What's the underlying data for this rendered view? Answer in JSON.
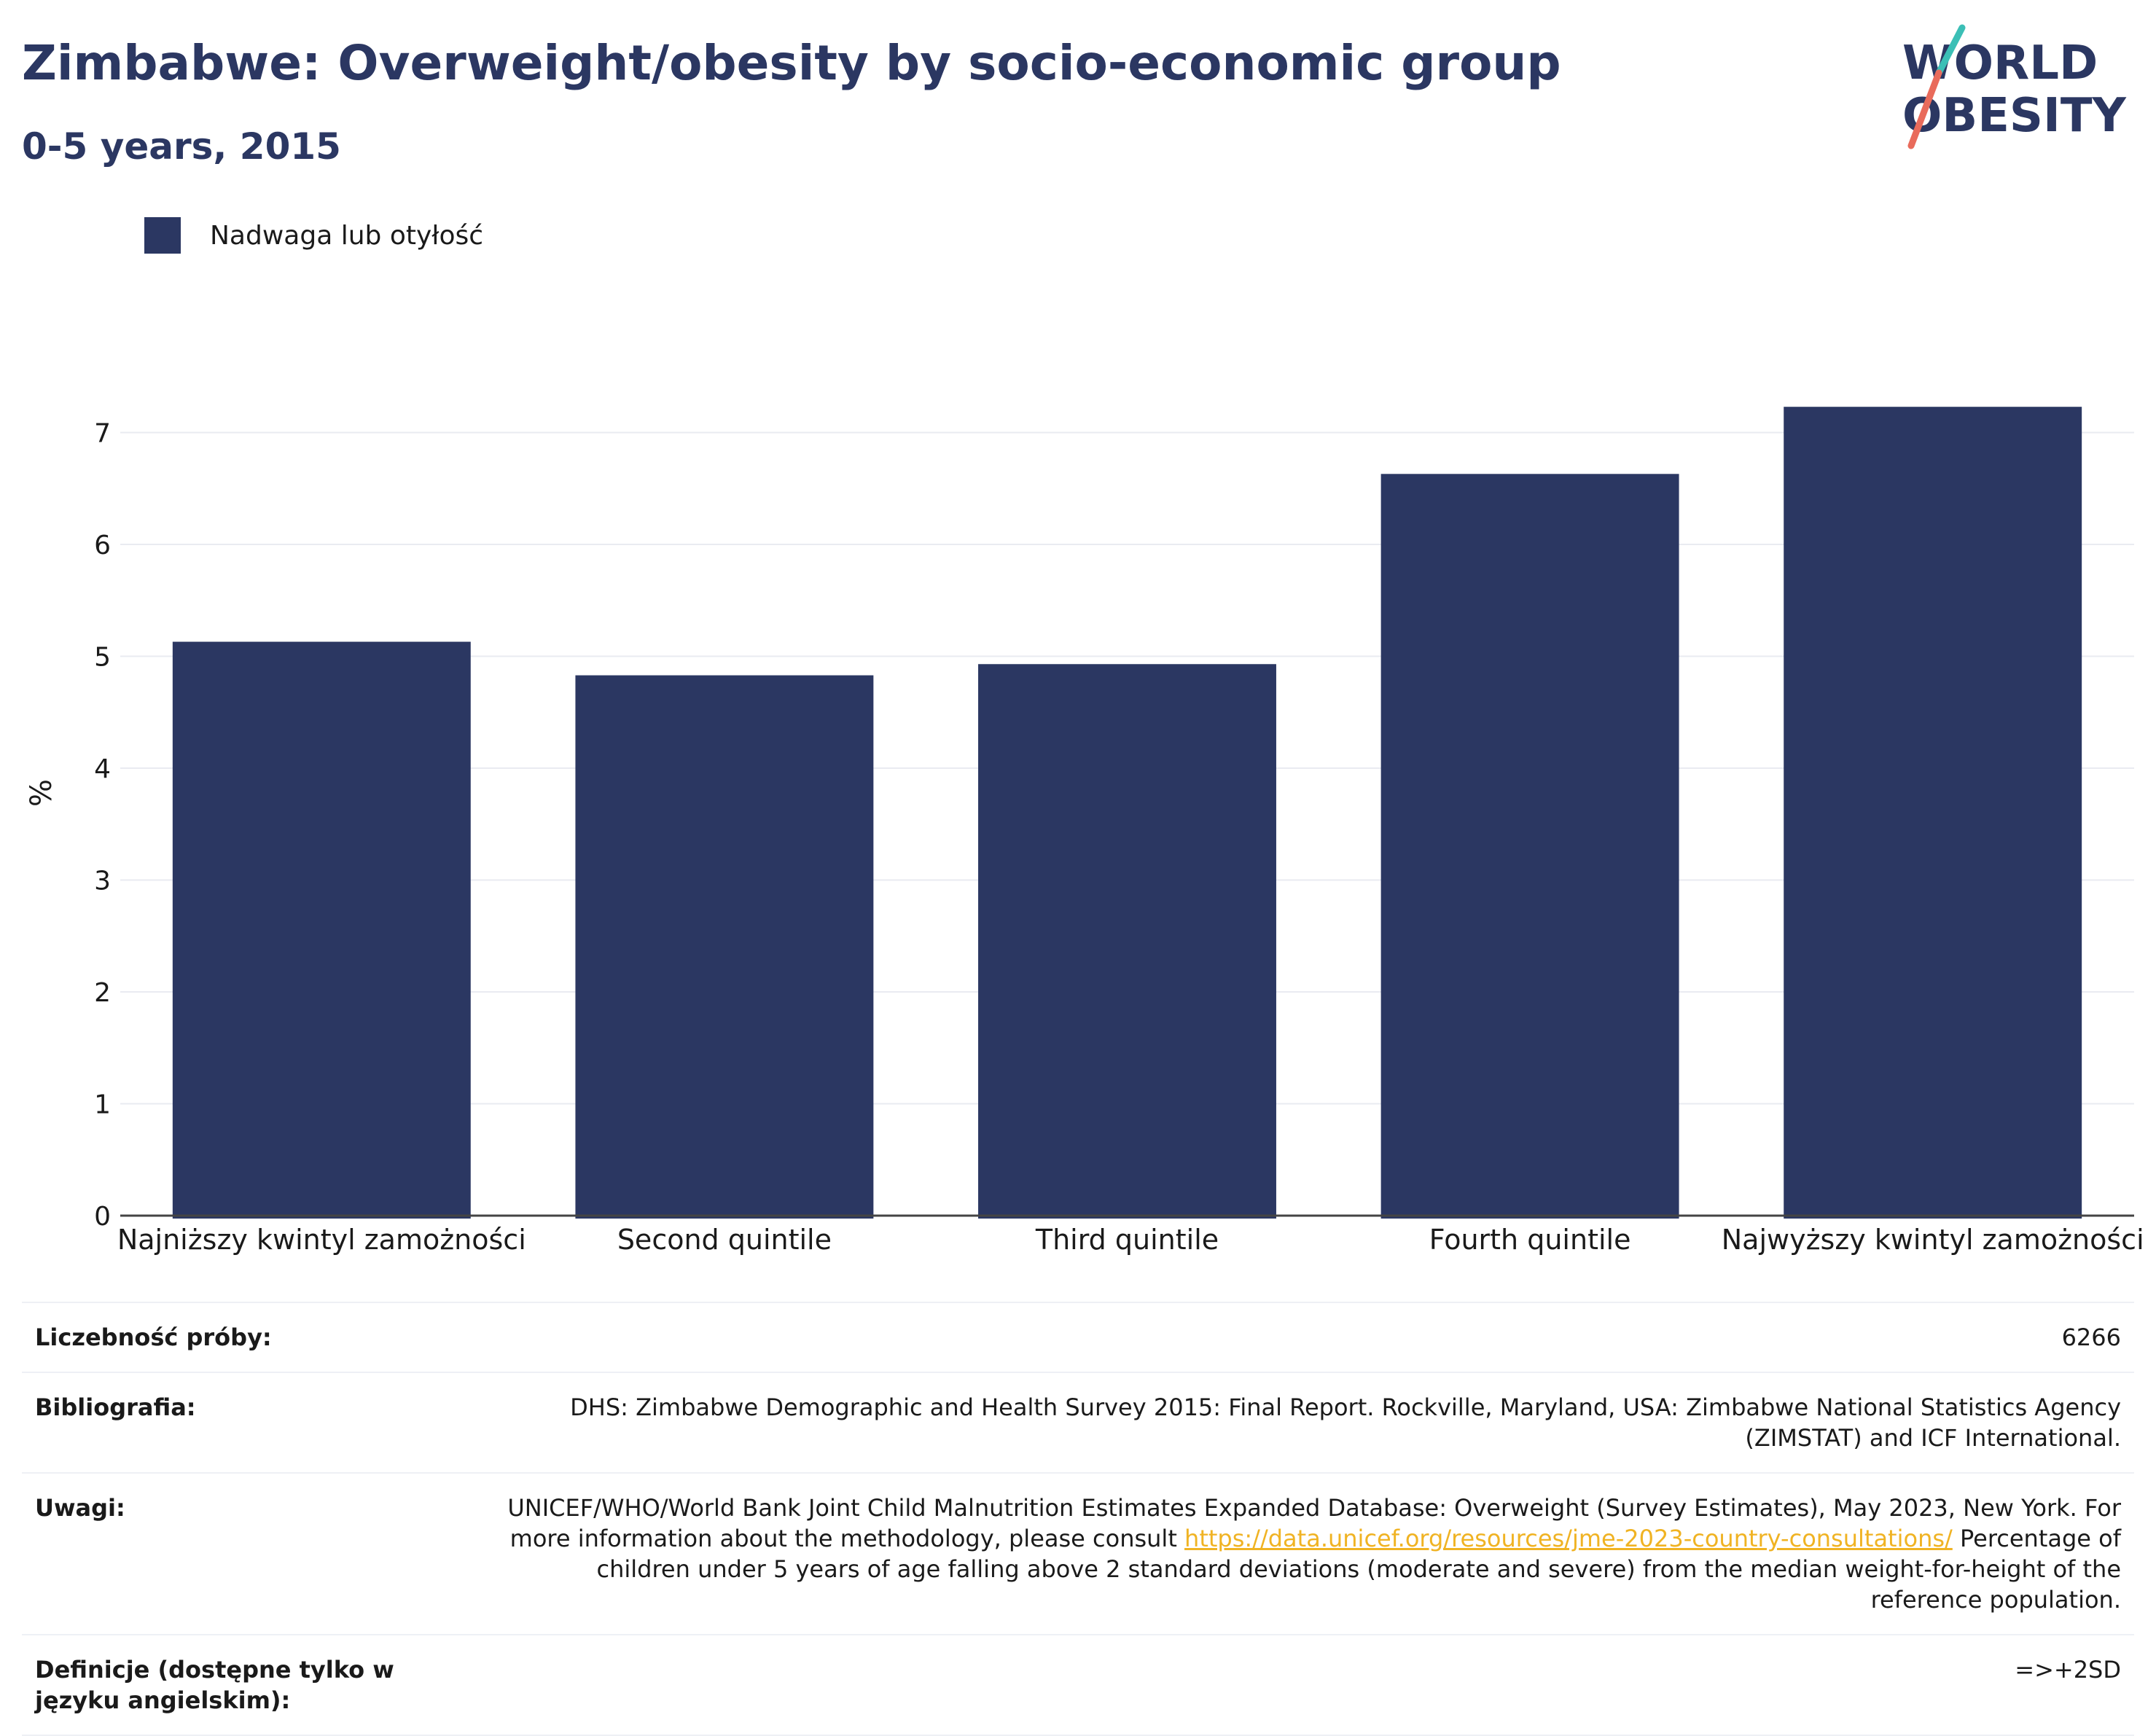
{
  "header": {
    "title": "Zimbabwe: Overweight/obesity by socio-economic group",
    "subtitle": "0-5 years, 2015"
  },
  "logo": {
    "line1": "WORLD",
    "line2": "OBESITY"
  },
  "colors": {
    "bar": "#2b3762",
    "title": "#2b3762",
    "grid": "#e9ebf1",
    "axis": "#444444",
    "link": "#f0b323",
    "logo_teal": "#3bbfb6",
    "logo_coral": "#e96b5b"
  },
  "chart_data": {
    "type": "bar",
    "categories": [
      "Najniższy kwintyl zamożności",
      "Second quintile",
      "Third quintile",
      "Fourth quintile",
      "Najwyższy kwintyl zamożności"
    ],
    "series": [
      {
        "name": "Nadwaga lub otyłość",
        "values": [
          5.13,
          4.83,
          4.93,
          6.63,
          7.23
        ]
      }
    ],
    "ylabel": "%",
    "xlabel": "",
    "ylim": [
      0,
      7.6
    ],
    "yticks": [
      0,
      1,
      2,
      3,
      4,
      5,
      6,
      7
    ],
    "grid": true,
    "legend_position": "top-left"
  },
  "meta": {
    "sample_label": "Liczebność próby:",
    "sample_value": "6266",
    "bibliography_label": "Bibliografia:",
    "bibliography_value": "DHS: Zimbabwe Demographic and Health Survey 2015: Final Report. Rockville, Maryland, USA: Zimbabwe National Statistics Agency (ZIMSTAT) and ICF International.",
    "notes_label": "Uwagi:",
    "notes_text_1": "UNICEF/WHO/World Bank Joint Child Malnutrition Estimates Expanded Database: Overweight (Survey Estimates), May 2023, New York. For more information about the methodology, please consult ",
    "notes_link": "https://data.unicef.org/resources/jme-2023-country-consultations/",
    "notes_text_2": " Percentage of children under 5 years of age falling above 2 standard deviations (moderate and severe) from the median weight-for-height of the reference population.",
    "definitions_label": "Definicje (dostępne tylko w języku angielskim):",
    "definitions_value": "=>+2SD"
  }
}
